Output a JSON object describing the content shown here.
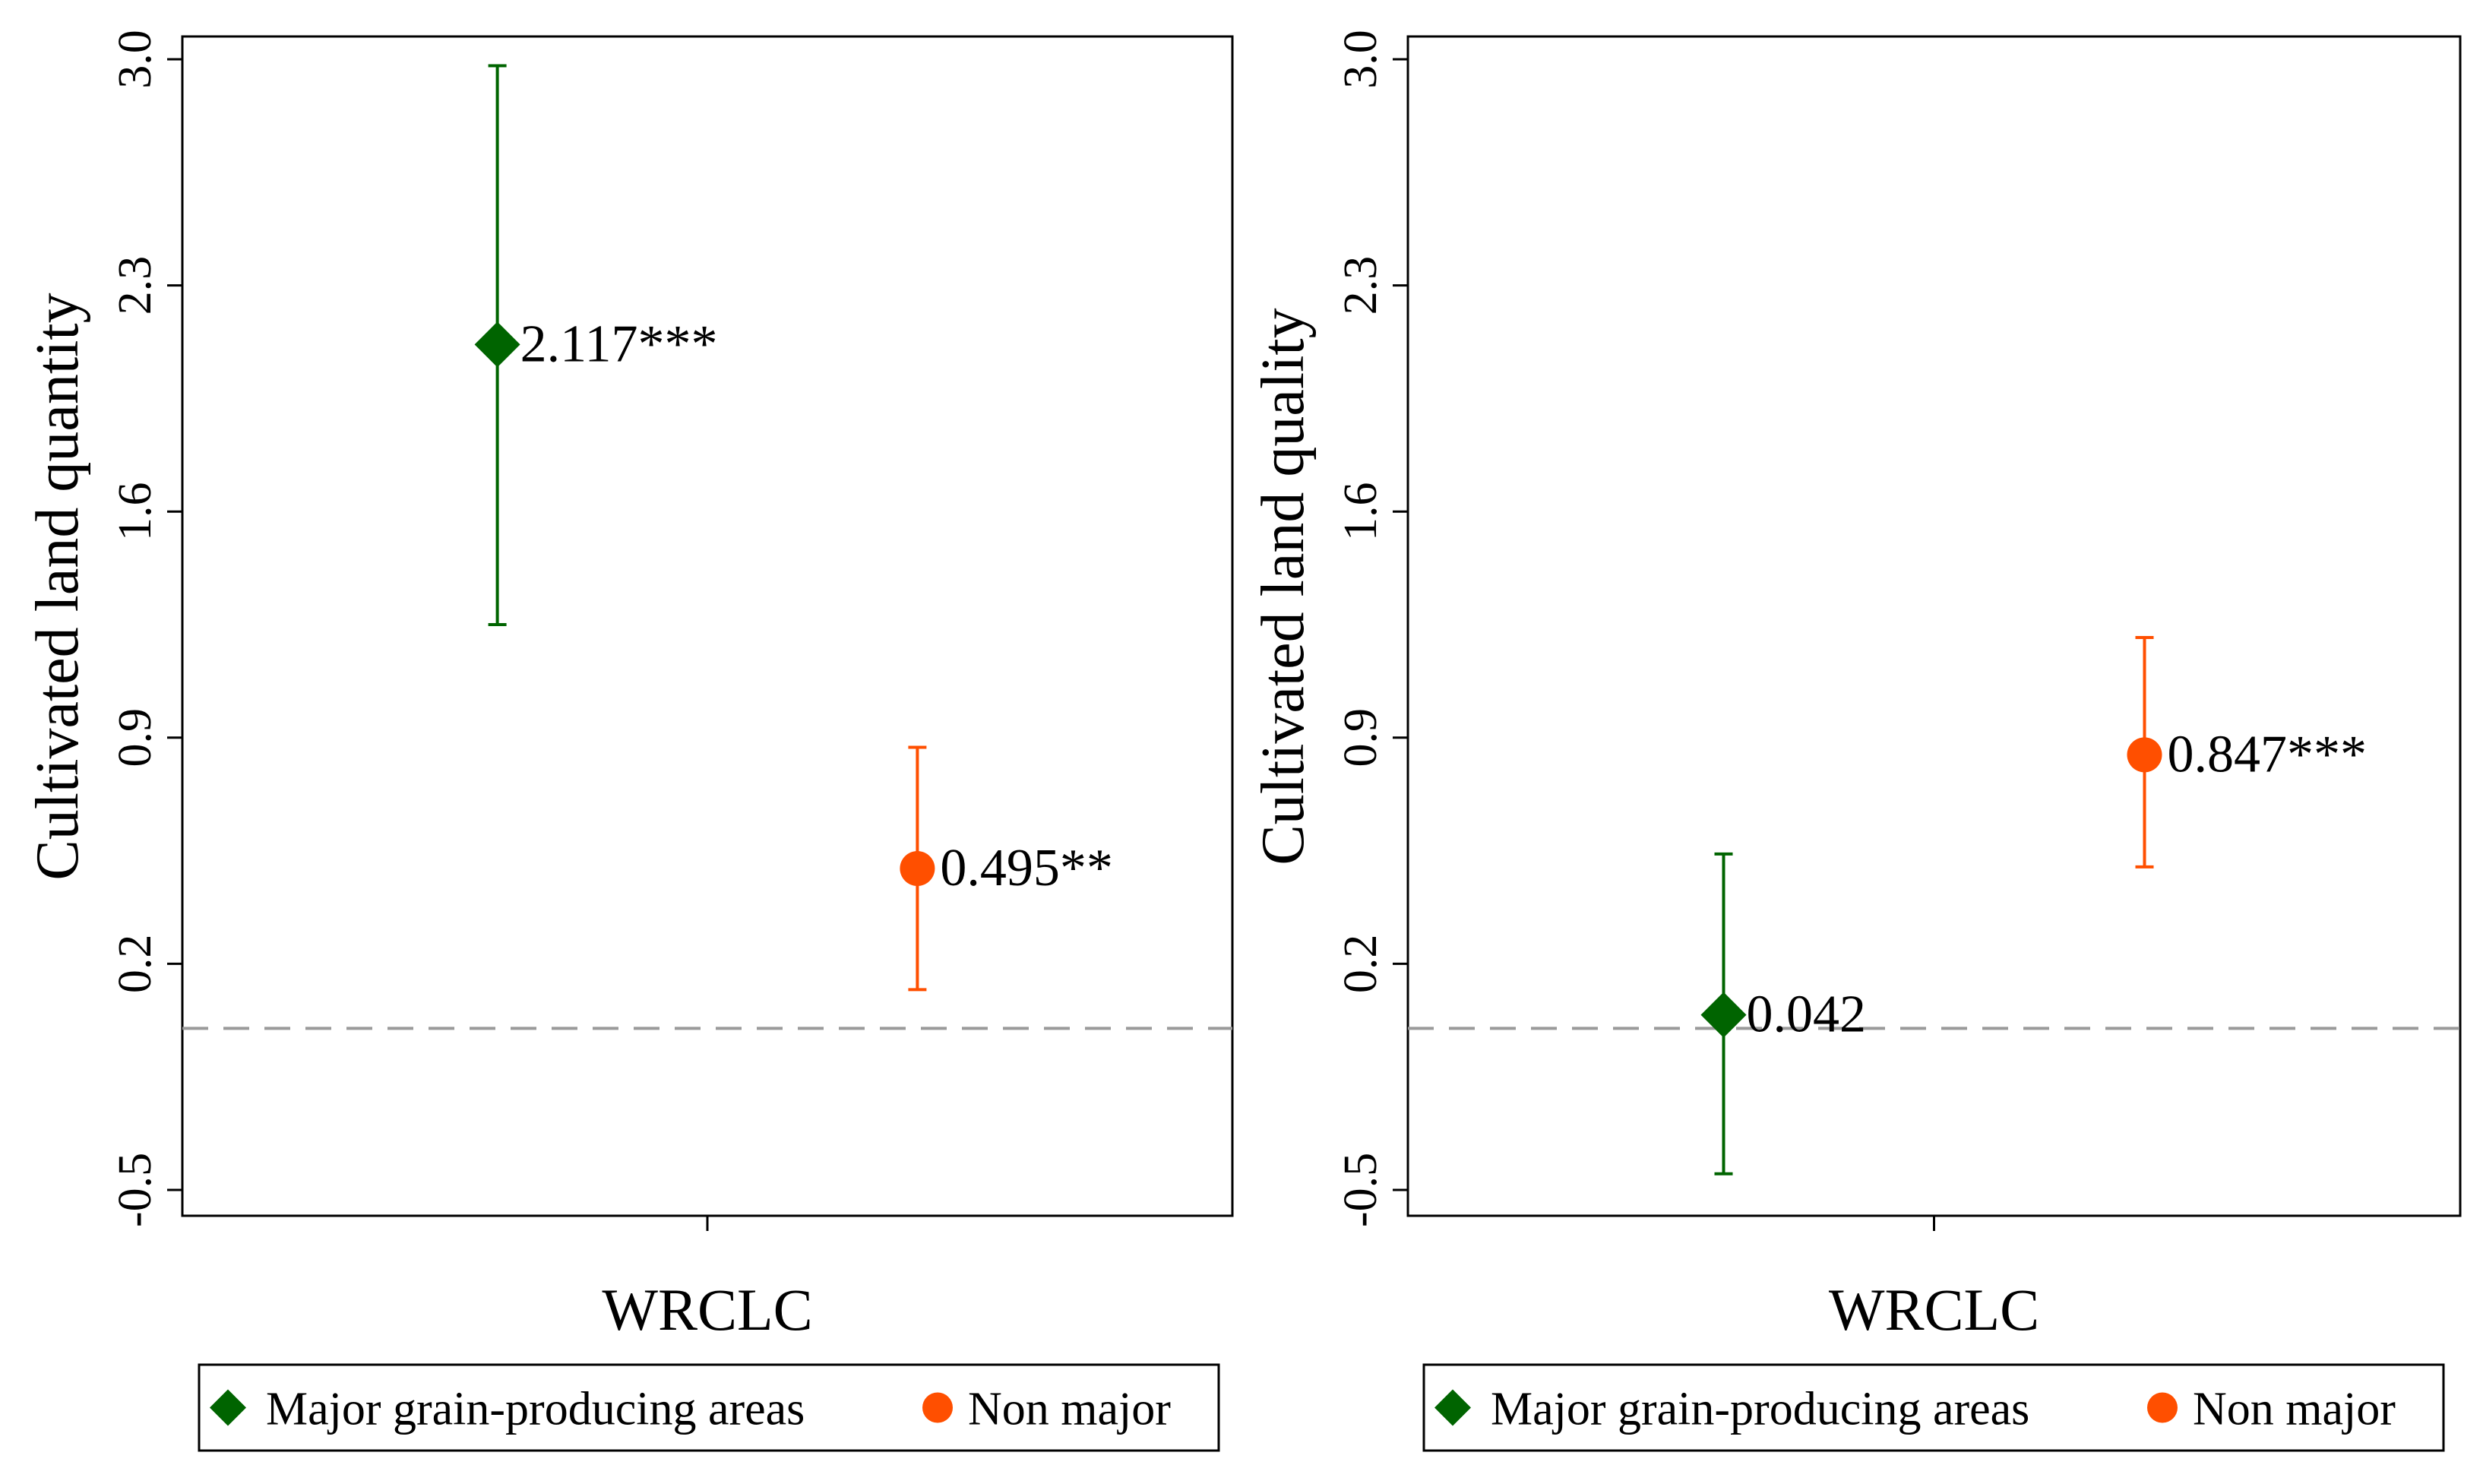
{
  "chart_data": [
    {
      "type": "scatter",
      "subtype": "coefficient-plot",
      "ylabel": "Cultivated land quantity",
      "xlabel": "WRCLC",
      "ylim": [
        -0.5,
        3.0
      ],
      "yticks": [
        "-0.5",
        "0.2",
        "0.9",
        "1.6",
        "2.3",
        "3.0"
      ],
      "reference_line": 0,
      "grid": false,
      "legend": {
        "position": "bottom",
        "entries": [
          "Major grain-producing areas",
          "Non major"
        ]
      },
      "series": [
        {
          "name": "Major grain-producing areas",
          "marker": "diamond",
          "color": "#006400",
          "x_position": "left",
          "estimate": 2.117,
          "ci_low": 1.25,
          "ci_high": 2.98,
          "label": "2.117***"
        },
        {
          "name": "Non major",
          "marker": "circle",
          "color": "#ff4f00",
          "x_position": "right",
          "estimate": 0.495,
          "ci_low": 0.12,
          "ci_high": 0.87,
          "label": "0.495**"
        }
      ]
    },
    {
      "type": "scatter",
      "subtype": "coefficient-plot",
      "ylabel": "Cultivated land quality",
      "xlabel": "WRCLC",
      "ylim": [
        -0.5,
        3.0
      ],
      "yticks": [
        "-0.5",
        "0.2",
        "0.9",
        "1.6",
        "2.3",
        "3.0"
      ],
      "reference_line": 0,
      "grid": false,
      "legend": {
        "position": "bottom",
        "entries": [
          "Major grain-producing areas",
          "Non major"
        ]
      },
      "series": [
        {
          "name": "Major grain-producing areas",
          "marker": "diamond",
          "color": "#006400",
          "x_position": "left",
          "estimate": 0.042,
          "ci_low": -0.45,
          "ci_high": 0.54,
          "label": "0.042"
        },
        {
          "name": "Non major",
          "marker": "circle",
          "color": "#ff4f00",
          "x_position": "right",
          "estimate": 0.847,
          "ci_low": 0.5,
          "ci_high": 1.21,
          "label": "0.847***"
        }
      ]
    }
  ]
}
